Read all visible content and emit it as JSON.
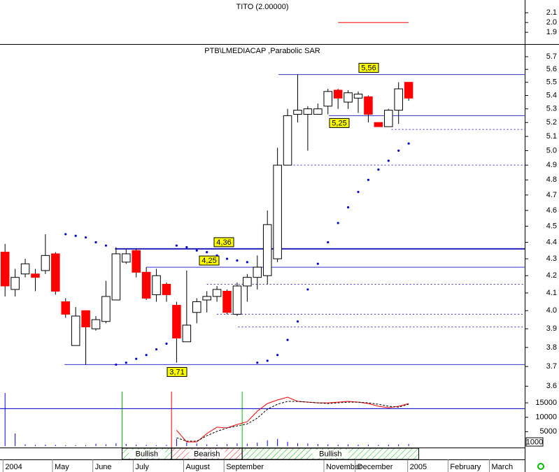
{
  "chart_data": [
    {
      "type": "line",
      "title": "TITO (2.00000)",
      "ylim": [
        1.78,
        2.23
      ],
      "yticks": [
        1.9,
        {
          "value": 2,
          "label": "2.0"
        },
        2.1
      ],
      "xlim": [
        -0.5,
        51.5
      ],
      "series": [
        {
          "color": "#ff0000",
          "x": [
            33,
            40
          ],
          "values": [
            2,
            2
          ]
        }
      ]
    },
    {
      "type": "candlestick",
      "title": "PTB\\LMEDIACAP ,Parabolic SAR",
      "log": true,
      "ylim": [
        3.58,
        5.79
      ],
      "yticks": [
        3.6,
        3.7,
        3.8,
        3.9,
        {
          "value": 4,
          "label": "4.0"
        },
        4.1,
        4.2,
        4.3,
        4.4,
        4.5,
        4.6,
        4.7,
        4.8,
        4.9,
        {
          "value": 5,
          "label": "5.0"
        },
        5.1,
        5.2,
        5.3,
        5.4,
        5.5,
        5.6,
        5.7
      ],
      "xlim": [
        -0.5,
        51.5
      ],
      "xticks": [
        {
          "value": -0.2,
          "label": "2004"
        },
        {
          "value": 4.7,
          "label": "May"
        },
        {
          "value": 8.7,
          "label": "June"
        },
        {
          "value": 12.7,
          "label": "July"
        },
        {
          "value": 17.7,
          "label": "August"
        },
        {
          "value": 21.7,
          "label": "September"
        },
        {
          "value": 31.6,
          "label": "November"
        },
        {
          "value": 34.7,
          "label": "December"
        },
        {
          "value": 39.9,
          "label": "2005"
        },
        {
          "value": 43.9,
          "label": "February"
        },
        {
          "value": 48.0,
          "label": "March"
        }
      ],
      "up_color": "#ffffff",
      "down_color": "#ff0000",
      "x": [
        0,
        1,
        2,
        3,
        4,
        5,
        6,
        7,
        8,
        9,
        10,
        11,
        12,
        13,
        14,
        15,
        16,
        17,
        18,
        19,
        20,
        21,
        22,
        23,
        24,
        25,
        26,
        27,
        28,
        29,
        30,
        31,
        32,
        33,
        34,
        35,
        36,
        37,
        38,
        39,
        40
      ],
      "open": [
        4.34,
        4.12,
        4.21,
        4.21,
        4.23,
        4.33,
        4.05,
        3.81,
        4.0,
        3.9,
        3.94,
        4.06,
        4.28,
        4.35,
        4.22,
        4.09,
        4.15,
        4.03,
        3.83,
        3.99,
        4.06,
        4.08,
        4.11,
        3.98,
        4.14,
        4.19,
        4.2,
        4.3,
        4.9,
        5.26,
        5.26,
        5.26,
        5.32,
        5.44,
        5.35,
        5.38,
        5.39,
        5.2,
        5.17,
        5.29,
        5.5
      ],
      "high": [
        4.39,
        4.24,
        4.3,
        4.24,
        4.45,
        4.34,
        4.07,
        4.02,
        4.0,
        3.97,
        4.17,
        4.37,
        4.36,
        4.36,
        4.25,
        4.24,
        4.16,
        4.05,
        4.23,
        4.07,
        4.11,
        4.14,
        4.12,
        4.16,
        4.21,
        4.32,
        4.6,
        5.02,
        5.3,
        5.56,
        5.32,
        5.34,
        5.45,
        5.45,
        5.44,
        5.43,
        5.4,
        5.2,
        5.3,
        5.5,
        5.5
      ],
      "low": [
        4.08,
        4.08,
        4.19,
        4.11,
        4.21,
        4.09,
        3.96,
        3.81,
        3.71,
        3.89,
        3.93,
        4.06,
        4.27,
        4.19,
        4.06,
        4.05,
        4.05,
        3.72,
        3.83,
        3.93,
        3.99,
        4.05,
        3.98,
        3.97,
        4.05,
        4.12,
        4.15,
        4.28,
        4.9,
        5.2,
        5.0,
        5.26,
        5.26,
        5.3,
        5.3,
        5.27,
        5.2,
        5.17,
        5.17,
        5.19,
        5.36
      ],
      "close": [
        4.14,
        4.19,
        4.27,
        4.19,
        4.32,
        4.11,
        3.98,
        3.97,
        3.91,
        3.95,
        4.08,
        4.33,
        4.33,
        4.22,
        4.07,
        4.2,
        4.09,
        3.85,
        3.92,
        4.05,
        4.08,
        4.12,
        3.99,
        4.14,
        4.19,
        4.25,
        4.51,
        4.9,
        5.25,
        5.29,
        5.3,
        5.3,
        5.43,
        5.38,
        5.42,
        5.41,
        5.26,
        5.17,
        5.29,
        5.45,
        5.38
      ],
      "sar": {
        "color": "#0000cc",
        "values": [
          null,
          null,
          null,
          null,
          null,
          null,
          4.45,
          4.44,
          4.43,
          4.4,
          4.38,
          3.71,
          3.72,
          3.74,
          3.76,
          3.79,
          3.82,
          4.38,
          4.37,
          4.35,
          4.34,
          4.32,
          4.3,
          4.29,
          4.28,
          3.72,
          3.73,
          3.76,
          3.84,
          3.94,
          4.12,
          4.27,
          4.4,
          4.52,
          4.62,
          4.72,
          4.8,
          4.87,
          4.93,
          5.0,
          5.05
        ]
      },
      "levels": [
        {
          "value": 5.56,
          "label": "5,56",
          "start": 27.1,
          "color": "#3333cc"
        },
        {
          "value": 5.25,
          "label": "5,25",
          "start": 32.1,
          "color": "#3333cc"
        },
        {
          "value": 4.36,
          "label": "4,36",
          "start": 10.9,
          "color": "#2222bb"
        },
        {
          "value": 4.25,
          "label": "4,25",
          "start": 14.0,
          "color": "#3333cc"
        },
        {
          "value": 3.71,
          "label": "3,71",
          "start": 5.9,
          "color": "#3333cc"
        }
      ],
      "dashed_levels": [
        {
          "value": 5.15,
          "start": 38.3,
          "color": "#3333cc"
        },
        {
          "value": 4.9,
          "start": 27.9,
          "color": "#3333cc"
        },
        {
          "value": 4.15,
          "start": 20.0,
          "color": "#3333cc"
        },
        {
          "value": 3.98,
          "start": 21.0,
          "color": "#3333cc"
        },
        {
          "value": 3.91,
          "start": 23.1,
          "color": "#3333cc"
        }
      ]
    },
    {
      "type": "line",
      "ylim": [
        -500,
        18900
      ],
      "yticks": [
        5000,
        10000,
        15000
      ],
      "xlim": [
        -0.5,
        51.5
      ],
      "x": [
        0,
        1,
        2,
        3,
        4,
        5,
        6,
        7,
        8,
        9,
        10,
        11,
        12,
        13,
        14,
        15,
        16,
        17,
        18,
        19,
        20,
        21,
        22,
        23,
        24,
        25,
        26,
        27,
        28,
        29,
        30,
        31,
        32,
        33,
        34,
        35,
        36,
        37,
        38,
        39,
        40
      ],
      "series": [
        {
          "color": "#ff0000",
          "dashed": false,
          "values": [
            null,
            null,
            null,
            null,
            null,
            null,
            null,
            null,
            null,
            null,
            null,
            null,
            null,
            null,
            null,
            null,
            null,
            5500,
            1450,
            1450,
            4350,
            6550,
            6300,
            7500,
            8450,
            12100,
            14750,
            16000,
            16950,
            15500,
            15250,
            15000,
            15000,
            15250,
            15500,
            15250,
            14750,
            13800,
            13300,
            13800,
            14750
          ]
        },
        {
          "color": "#000000",
          "dashed": true,
          "values": [
            null,
            null,
            null,
            null,
            null,
            null,
            null,
            null,
            null,
            null,
            null,
            null,
            null,
            null,
            null,
            null,
            null,
            2900,
            1700,
            1700,
            3600,
            5100,
            6300,
            7000,
            7700,
            9700,
            12800,
            14500,
            15500,
            15500,
            15250,
            15000,
            14750,
            15000,
            15250,
            15250,
            15000,
            14500,
            13800,
            13500,
            14500
          ]
        }
      ],
      "volume": {
        "color": "#0000ff",
        "values": [
          18400,
          4400,
          600,
          400,
          500,
          400,
          300,
          300,
          300,
          800,
          600,
          1000,
          700,
          500,
          400,
          300,
          400,
          2500,
          1200,
          900,
          600,
          500,
          700,
          900,
          800,
          1200,
          2000,
          2500,
          1500,
          1000,
          900,
          700,
          600,
          500,
          600,
          500,
          500,
          400,
          500,
          600,
          700
        ]
      },
      "hline": {
        "value": 13000,
        "color": "#0000cc"
      },
      "cursor_label": "1000",
      "signals": [
        {
          "label": "Bullish",
          "start": 11.6,
          "end": 16.5,
          "color": "#00bb00"
        },
        {
          "label": "Bearish",
          "start": 16.5,
          "end": 23.5,
          "color": "#ff0000"
        },
        {
          "label": "Bullish",
          "start": 23.5,
          "end": 41.0,
          "color": "#00bb00"
        }
      ]
    }
  ]
}
